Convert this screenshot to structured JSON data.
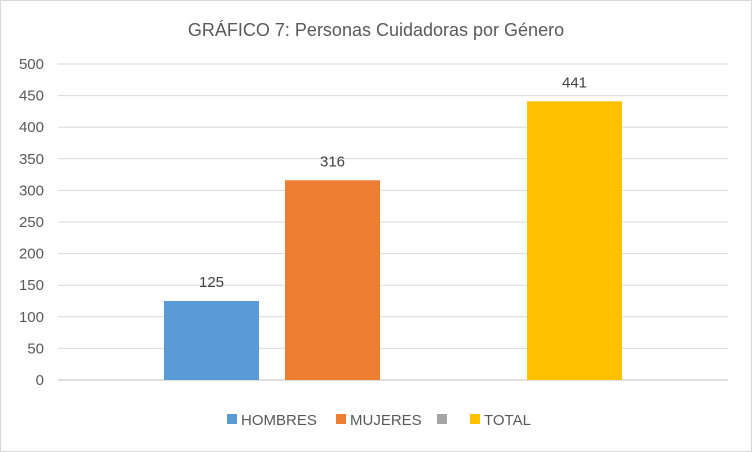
{
  "chart_data": {
    "type": "bar",
    "title": "GRÁFICO 7:  Personas Cuidadoras por Género",
    "xlabel": "",
    "ylabel": "",
    "ylim": [
      0,
      500
    ],
    "yticks": [
      0,
      50,
      100,
      150,
      200,
      250,
      300,
      350,
      400,
      450,
      500
    ],
    "grid": true,
    "legend_position": "bottom",
    "series": [
      {
        "name": "HOMBRES",
        "value": 125,
        "color": "#5b9bd5"
      },
      {
        "name": "MUJERES",
        "value": 316,
        "color": "#ed7d31"
      },
      {
        "name": "",
        "value": null,
        "color": "#a5a5a5"
      },
      {
        "name": "TOTAL",
        "value": 441,
        "color": "#ffc000"
      }
    ]
  }
}
